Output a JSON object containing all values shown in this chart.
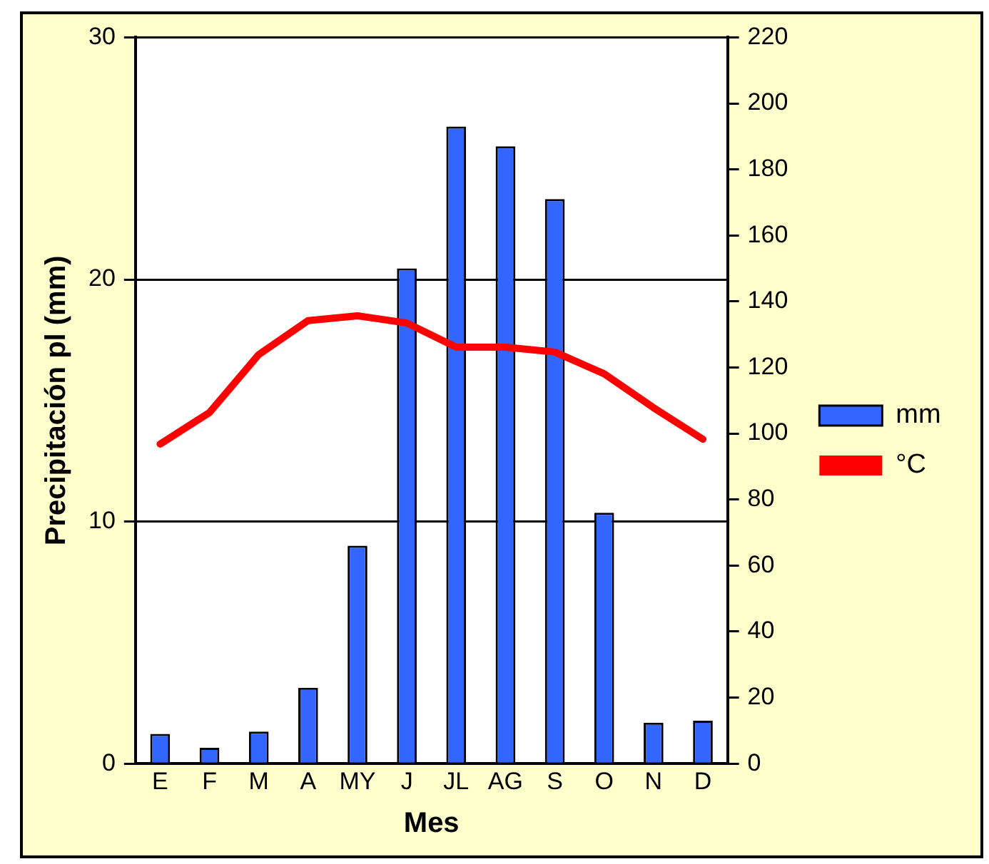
{
  "chart_data": {
    "type": "bar",
    "xlabel": "Mes",
    "ylabel": "Precipitación pl (mm)",
    "categories": [
      "E",
      "F",
      "M",
      "A",
      "MY",
      "J",
      "JL",
      "AG",
      "S",
      "O",
      "N",
      "D"
    ],
    "series": [
      {
        "name": "mm",
        "axis": "y2",
        "color": "#3366ff",
        "values": [
          9,
          4.8,
          9.7,
          23,
          66,
          150,
          193,
          187,
          171,
          76,
          12.4,
          13
        ]
      },
      {
        "name": "°C",
        "type": "line",
        "color": "#ff0000",
        "values": [
          13.2,
          14.5,
          16.9,
          18.3,
          18.5,
          18.2,
          17.2,
          17.2,
          17.0,
          16.1,
          14.7,
          13.4
        ]
      }
    ],
    "ylim": [
      0,
      30
    ],
    "yticks": [
      0,
      10,
      20,
      30
    ],
    "y2lim": [
      0,
      220
    ],
    "y2ticks": [
      0,
      20,
      40,
      60,
      80,
      100,
      120,
      140,
      160,
      180,
      200,
      220
    ],
    "grid": "y",
    "legend": "right",
    "marker": "none",
    "line_style": "solid"
  }
}
